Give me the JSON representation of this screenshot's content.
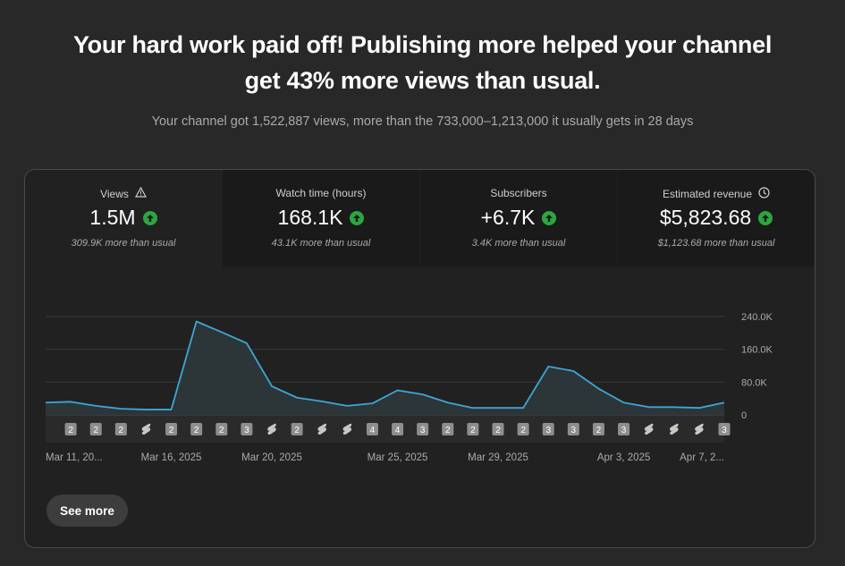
{
  "headline": {
    "line1": "Your hard work paid off! Publishing more helped your channel",
    "line2": "get 43% more views than usual."
  },
  "subline": "Your channel got 1,522,887 views, more than the 733,000–1,213,000 it usually gets in 28 days",
  "tabs": [
    {
      "label": "Views",
      "value": "1.5M",
      "sub": "309.9K more than usual",
      "icon": "warning-icon",
      "active": true
    },
    {
      "label": "Watch time (hours)",
      "value": "168.1K",
      "sub": "43.1K more than usual",
      "icon": "",
      "active": false
    },
    {
      "label": "Subscribers",
      "value": "+6.7K",
      "sub": "3.4K more than usual",
      "icon": "",
      "active": false
    },
    {
      "label": "Estimated revenue",
      "value": "$5,823.68",
      "sub": "$1,123.68 more than usual",
      "icon": "clock-icon",
      "active": false
    }
  ],
  "colors": {
    "line": "#3ea6d8",
    "up": "#2ba640",
    "grid": "#3a3a3a"
  },
  "chart_data": {
    "type": "area",
    "ylim": [
      0,
      240000
    ],
    "yticks": [
      0,
      80000,
      160000,
      240000
    ],
    "ytick_labels": [
      "0",
      "80.0K",
      "160.0K",
      "240.0K"
    ],
    "x": [
      "2025-03-11",
      "2025-03-12",
      "2025-03-13",
      "2025-03-14",
      "2025-03-15",
      "2025-03-16",
      "2025-03-17",
      "2025-03-18",
      "2025-03-19",
      "2025-03-20",
      "2025-03-21",
      "2025-03-22",
      "2025-03-23",
      "2025-03-24",
      "2025-03-25",
      "2025-03-26",
      "2025-03-27",
      "2025-03-28",
      "2025-03-29",
      "2025-03-30",
      "2025-03-31",
      "2025-04-01",
      "2025-04-02",
      "2025-04-03",
      "2025-04-04",
      "2025-04-05",
      "2025-04-06",
      "2025-04-07"
    ],
    "values": [
      30000,
      32000,
      22000,
      15000,
      13000,
      13000,
      228000,
      202000,
      175000,
      70000,
      42000,
      33000,
      22000,
      28000,
      60000,
      50000,
      30000,
      17000,
      17000,
      17000,
      118000,
      107000,
      64000,
      30000,
      19000,
      19000,
      17000,
      30000
    ],
    "xtick_labels": [
      {
        "label": "Mar 11, 20...",
        "index": 0
      },
      {
        "label": "Mar 16, 2025",
        "index": 5
      },
      {
        "label": "Mar 20, 2025",
        "index": 9
      },
      {
        "label": "Mar 25, 2025",
        "index": 14
      },
      {
        "label": "Mar 29, 2025",
        "index": 18
      },
      {
        "label": "Apr 3, 2025",
        "index": 23
      },
      {
        "label": "Apr 7, 2...",
        "index": 27
      }
    ],
    "markers": [
      {
        "index": 1,
        "type": "count",
        "label": "2"
      },
      {
        "index": 2,
        "type": "count",
        "label": "2"
      },
      {
        "index": 3,
        "type": "count",
        "label": "2"
      },
      {
        "index": 4,
        "type": "shorts"
      },
      {
        "index": 5,
        "type": "count",
        "label": "2"
      },
      {
        "index": 6,
        "type": "count",
        "label": "2"
      },
      {
        "index": 7,
        "type": "count",
        "label": "2"
      },
      {
        "index": 8,
        "type": "count",
        "label": "3"
      },
      {
        "index": 9,
        "type": "shorts"
      },
      {
        "index": 10,
        "type": "count",
        "label": "2"
      },
      {
        "index": 11,
        "type": "shorts"
      },
      {
        "index": 12,
        "type": "shorts"
      },
      {
        "index": 13,
        "type": "count",
        "label": "4"
      },
      {
        "index": 14,
        "type": "count",
        "label": "4"
      },
      {
        "index": 15,
        "type": "count",
        "label": "3"
      },
      {
        "index": 16,
        "type": "count",
        "label": "2"
      },
      {
        "index": 17,
        "type": "count",
        "label": "2"
      },
      {
        "index": 18,
        "type": "count",
        "label": "2"
      },
      {
        "index": 19,
        "type": "count",
        "label": "2"
      },
      {
        "index": 20,
        "type": "count",
        "label": "3"
      },
      {
        "index": 21,
        "type": "count",
        "label": "3"
      },
      {
        "index": 22,
        "type": "count",
        "label": "2"
      },
      {
        "index": 23,
        "type": "count",
        "label": "3"
      },
      {
        "index": 24,
        "type": "shorts"
      },
      {
        "index": 25,
        "type": "shorts"
      },
      {
        "index": 26,
        "type": "shorts"
      },
      {
        "index": 27,
        "type": "count",
        "label": "3"
      }
    ]
  },
  "see_more": "See more"
}
